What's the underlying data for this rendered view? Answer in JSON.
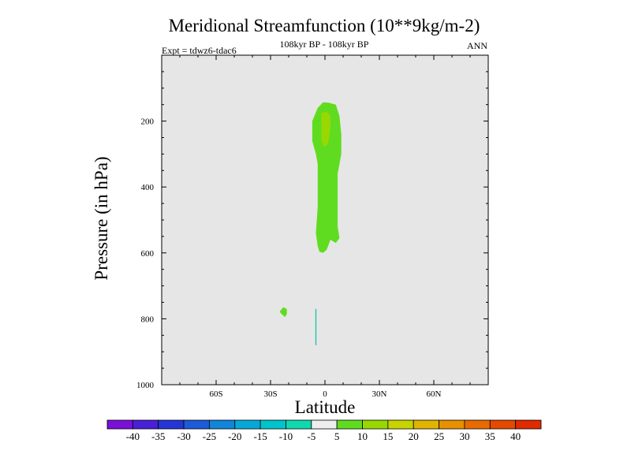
{
  "chart_data": {
    "type": "heatmap",
    "title": "Meridional Streamfunction (10**9kg/m-2)",
    "subtitle": "108kyr BP - 108kyr BP",
    "left_label": "Expt = tdwz6-tdac6",
    "right_label": "ANN",
    "xlabel": "Latitude",
    "ylabel": "Pressure (in hPa)",
    "xlim": [
      -90,
      90
    ],
    "ylim": [
      1000,
      0
    ],
    "x_ticks": [
      {
        "value": -60,
        "label": "60S"
      },
      {
        "value": -30,
        "label": "30S"
      },
      {
        "value": 0,
        "label": "0"
      },
      {
        "value": 30,
        "label": "30N"
      },
      {
        "value": 60,
        "label": "60N"
      }
    ],
    "y_ticks": [
      {
        "value": 200,
        "label": "200"
      },
      {
        "value": 400,
        "label": "400"
      },
      {
        "value": 600,
        "label": "600"
      },
      {
        "value": 800,
        "label": "800"
      },
      {
        "value": 1000,
        "label": "1000"
      }
    ],
    "background_fill": "#e6e6e6",
    "colorbar": {
      "levels": [
        "-40",
        "-35",
        "-30",
        "-25",
        "-20",
        "-15",
        "-10",
        "-5",
        "5",
        "10",
        "15",
        "20",
        "25",
        "30",
        "35",
        "40"
      ],
      "colors": [
        "#7a10d8",
        "#4a1fd8",
        "#2636d6",
        "#1c5cd8",
        "#0f86da",
        "#06a8d8",
        "#00c4cc",
        "#10d8b0",
        "#eeeeee",
        "#60dc20",
        "#98d800",
        "#c8d400",
        "#e0b400",
        "#e89000",
        "#e86a00",
        "#e44a00",
        "#e02a00"
      ]
    },
    "contours": [
      {
        "name": "contour-5-10-upper",
        "level_range": "5 to 10",
        "color": "#60dc20",
        "points": [
          [
            -4,
            160
          ],
          [
            -1,
            143
          ],
          [
            2,
            144
          ],
          [
            6,
            150
          ],
          [
            8,
            185
          ],
          [
            9,
            240
          ],
          [
            9,
            300
          ],
          [
            7,
            360
          ],
          [
            7,
            440
          ],
          [
            7,
            520
          ],
          [
            8,
            555
          ],
          [
            6,
            570
          ],
          [
            3,
            560
          ],
          [
            1,
            590
          ],
          [
            -1,
            600
          ],
          [
            -3,
            597
          ],
          [
            -4,
            580
          ],
          [
            -5,
            540
          ],
          [
            -4,
            460
          ],
          [
            -4,
            380
          ],
          [
            -4,
            330
          ],
          [
            -5,
            300
          ],
          [
            -7,
            260
          ],
          [
            -7,
            200
          ]
        ]
      },
      {
        "name": "contour-10-15-core",
        "level_range": "10 to 15",
        "color": "#98d800",
        "points": [
          [
            -2,
            175
          ],
          [
            1,
            172
          ],
          [
            3,
            185
          ],
          [
            3,
            220
          ],
          [
            2,
            260
          ],
          [
            1,
            275
          ],
          [
            -1,
            275
          ],
          [
            -2,
            255
          ],
          [
            -2,
            220
          ],
          [
            -2,
            195
          ]
        ]
      },
      {
        "name": "contour-5-10-small",
        "level_range": "5 to 10",
        "color": "#60dc20",
        "points": [
          [
            -23,
            765
          ],
          [
            -21,
            770
          ],
          [
            -21,
            785
          ],
          [
            -22,
            795
          ],
          [
            -24,
            785
          ],
          [
            -25,
            778
          ]
        ]
      },
      {
        "name": "contour-line-5",
        "level_range": "-5 to 5",
        "color": "#00c4a0",
        "points": [
          [
            -5,
            770
          ],
          [
            -5,
            880
          ]
        ]
      }
    ]
  }
}
